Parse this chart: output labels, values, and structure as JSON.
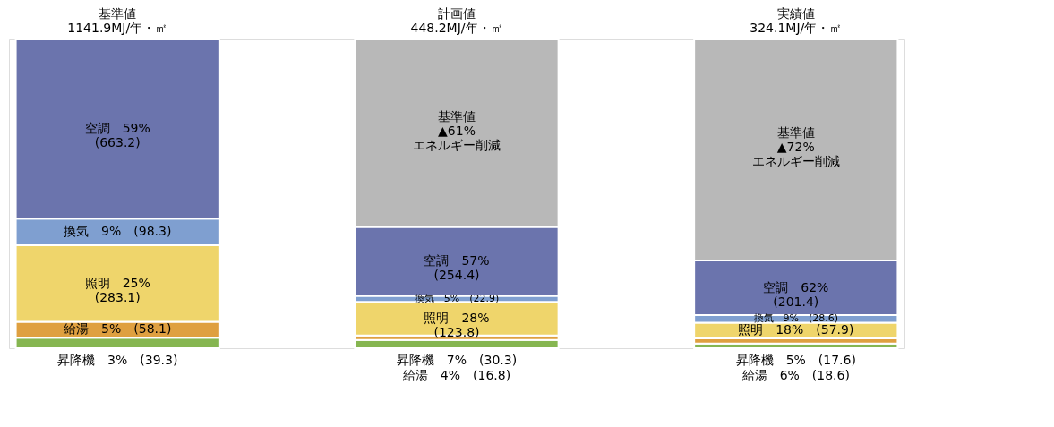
{
  "chart_data": {
    "type": "bar",
    "stacked": true,
    "legend": false,
    "categories": [
      "基準値\n1141.9MJ/年・㎡",
      "計画値\n448.2MJ/年・㎡",
      "実績値\n324.1MJ/年・㎡"
    ],
    "series": [
      {
        "color": "#86b651",
        "values": [
          39.3,
          30.3,
          17.6
        ],
        "value_labels": [
          "昇降機　3%　(39.3)",
          "昇降機　7%　(30.3)",
          "昇降機　5%　(17.6)"
        ]
      },
      {
        "color": "#dfa040",
        "values": [
          58.1,
          16.8,
          18.6
        ],
        "value_labels": [
          "給湯　5%　(58.1)",
          "給湯　4%　(16.8)",
          "給湯　6%　(18.6)"
        ]
      },
      {
        "color": "#efd56b",
        "values": [
          283.1,
          123.8,
          57.9
        ],
        "value_labels": [
          "照明　25%\n(283.1)",
          "照明　28%\n(123.8)",
          "照明　18%　(57.9)"
        ]
      },
      {
        "color": "#7f9fd0",
        "values": [
          98.3,
          22.9,
          28.6
        ],
        "value_labels": [
          "換気　9%　(98.3)",
          "換気　5%　(22.9)",
          "換気　9%　(28.6)"
        ]
      },
      {
        "color": "#6b74ad",
        "values": [
          663.2,
          254.4,
          201.4
        ],
        "value_labels": [
          "空調　59%\n(663.2)",
          "空調　57%\n(254.4)",
          "空調　62%\n(201.4)"
        ]
      },
      {
        "color": "#b8b8b8",
        "values": [
          null,
          693.7,
          817.8
        ]
      }
    ],
    "annotations": [
      "基準値\n▲61%\nエネルギー削減",
      "基準値\n▲72%\nエネルギー削減"
    ]
  }
}
